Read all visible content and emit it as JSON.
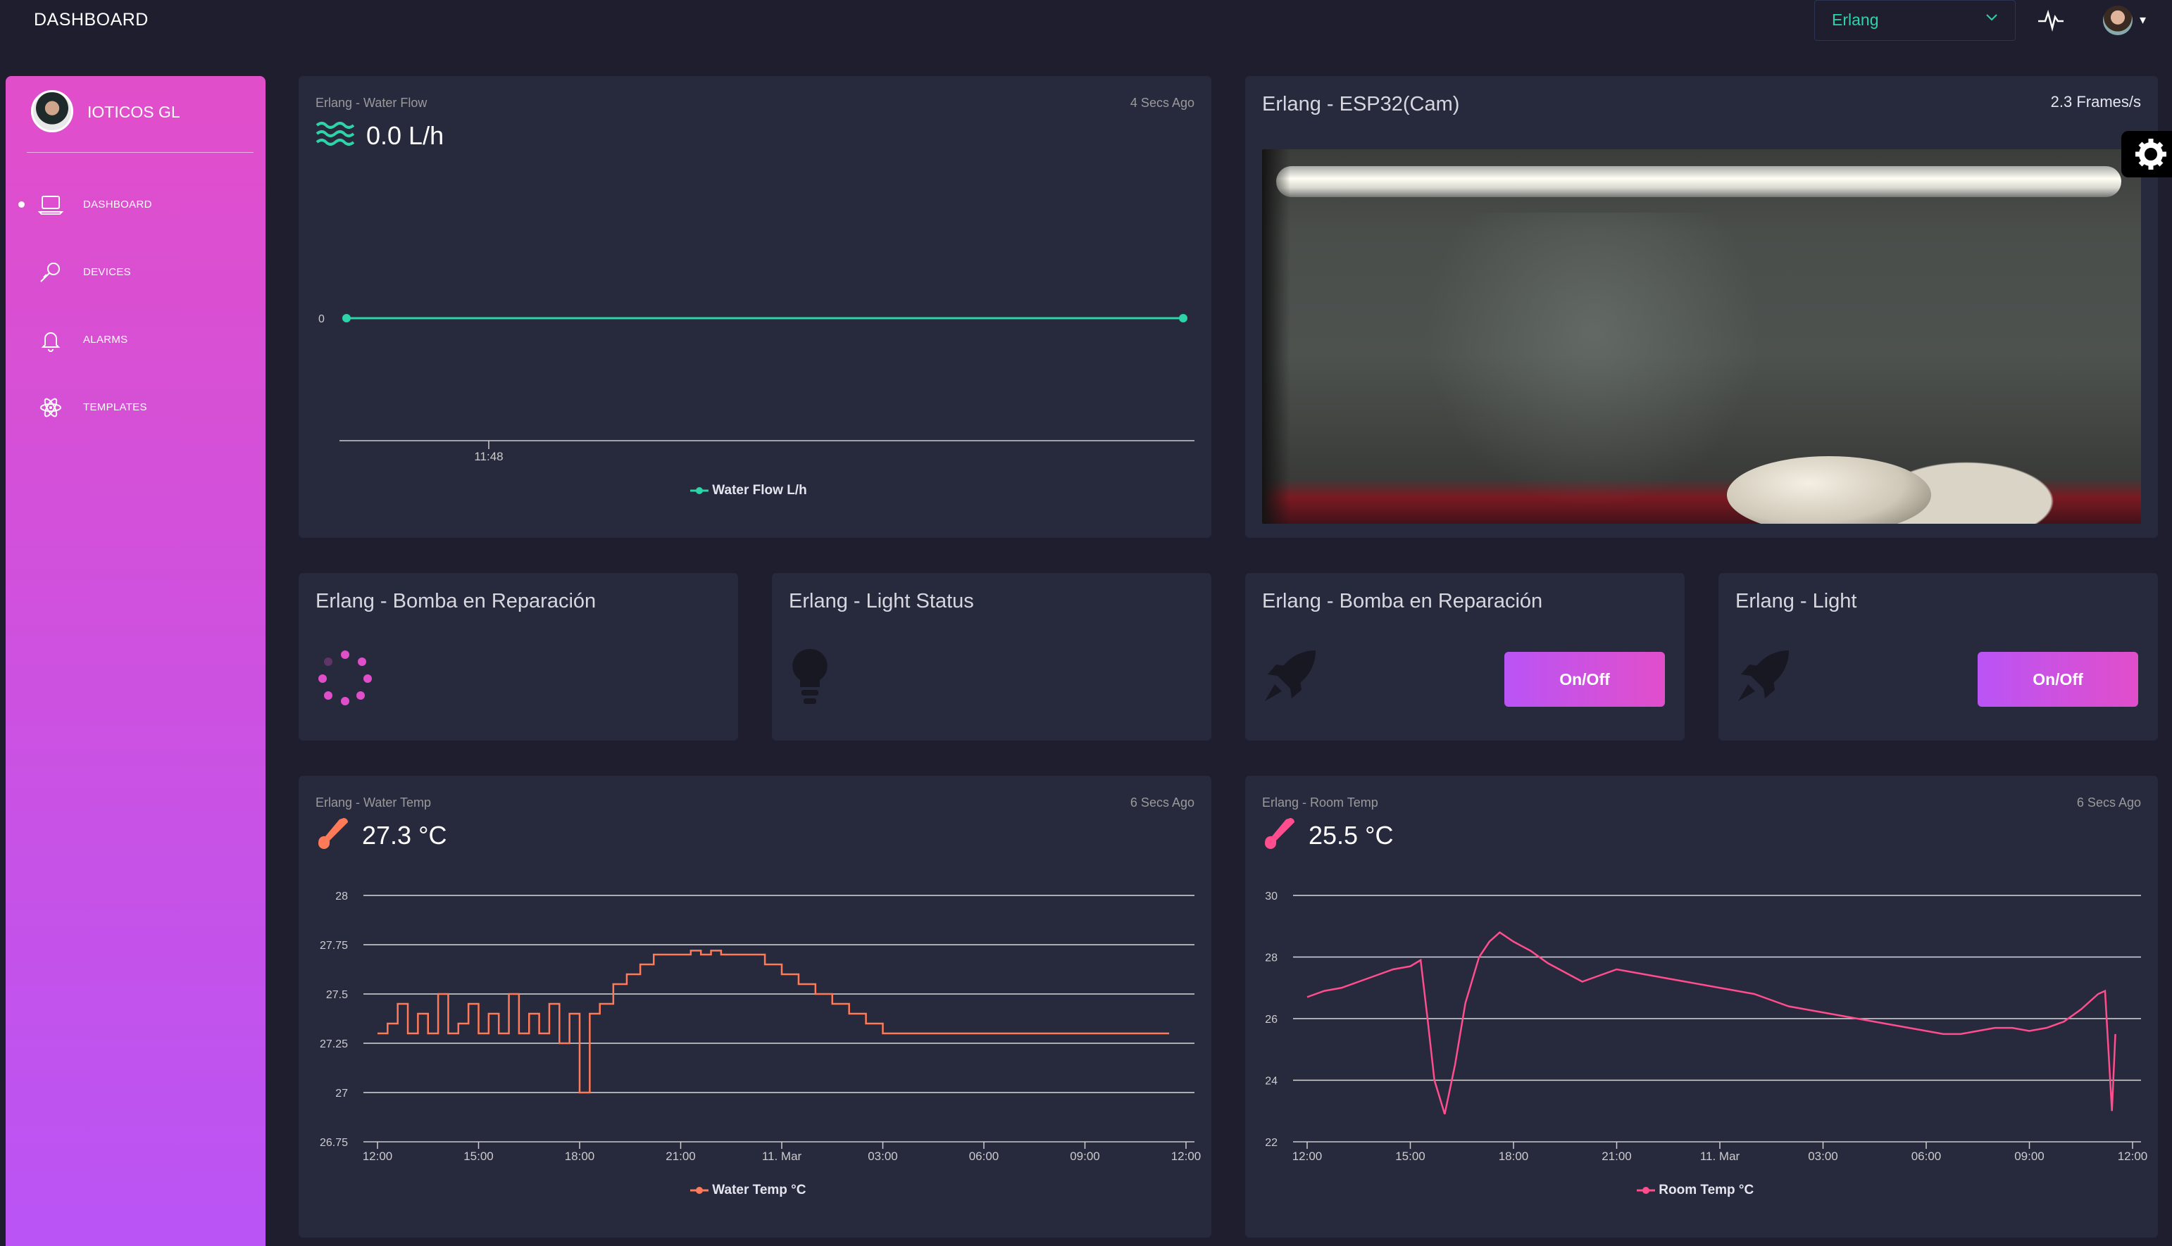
{
  "header": {
    "brand": "DASHBOARD",
    "device_select": "Erlang"
  },
  "sidebar": {
    "user_name": "IOTICOS GL",
    "items": [
      {
        "label": "DASHBOARD",
        "icon": "laptop-icon",
        "active": true
      },
      {
        "label": "DEVICES",
        "icon": "light-bulb-icon",
        "active": false
      },
      {
        "label": "ALARMS",
        "icon": "bell-icon",
        "active": false
      },
      {
        "label": "TEMPLATES",
        "icon": "atom-icon",
        "active": false
      }
    ]
  },
  "colors": {
    "accent_start": "#ba54f5",
    "accent_end": "#e14eca",
    "teal": "#2dd4a8",
    "orange": "#ff7a59",
    "pink": "#ff4d8d",
    "card": "#27293d",
    "bg": "#1e1e2f"
  },
  "water_flow": {
    "subtitle": "Erlang - Water Flow",
    "ago": "4 Secs Ago",
    "value": "0.0 L/h",
    "icon": "water-waves-icon",
    "chart_data": {
      "type": "line",
      "ytick_labels": [
        "0"
      ],
      "xtick_labels": [
        "11:48"
      ],
      "series": [
        {
          "name": "Water Flow L/h",
          "values": [
            0,
            0
          ]
        }
      ],
      "legend": "Water Flow L/h"
    }
  },
  "camera": {
    "title": "Erlang - ESP32(Cam)",
    "fps": "2.3 Frames/s"
  },
  "widgets": [
    {
      "title": "Erlang - Bomba en Reparación",
      "icon": "spinner-icon"
    },
    {
      "title": "Erlang - Light Status",
      "icon": "light-bulb-icon"
    },
    {
      "title": "Erlang - Bomba en Reparación",
      "icon": "rocket-icon",
      "button": "On/Off"
    },
    {
      "title": "Erlang - Light",
      "icon": "rocket-icon",
      "button": "On/Off"
    }
  ],
  "water_temp": {
    "subtitle": "Erlang - Water Temp",
    "ago": "6 Secs Ago",
    "value": "27.3 °C",
    "icon": "thermometer-icon",
    "chart_data": {
      "type": "line",
      "ylim": [
        26.75,
        28
      ],
      "ytick_labels": [
        "28",
        "27.75",
        "27.5",
        "27.25",
        "27",
        "26.75"
      ],
      "xtick_labels": [
        "12:00",
        "15:00",
        "18:00",
        "21:00",
        "11. Mar",
        "03:00",
        "06:00",
        "09:00",
        "12:00"
      ],
      "x": [
        0,
        0.3,
        0.6,
        0.9,
        1.2,
        1.5,
        1.8,
        2.1,
        2.4,
        2.7,
        3.0,
        3.3,
        3.6,
        3.9,
        4.2,
        4.5,
        4.8,
        5.1,
        5.4,
        5.7,
        6.0,
        6.3,
        6.6,
        7.0,
        7.4,
        7.8,
        8.2,
        8.6,
        9.0,
        9.3,
        9.6,
        9.9,
        10.2,
        10.5,
        11.0,
        11.5,
        12.0,
        12.5,
        13.0,
        13.5,
        14.0,
        14.5,
        15.0,
        15.5,
        16.0,
        16.5,
        17.0,
        17.5,
        18.0,
        18.5,
        19.0,
        19.5,
        20.0,
        20.5,
        21.0,
        21.5,
        22.0,
        22.5,
        23.0,
        23.5
      ],
      "series": [
        {
          "name": "Water Temp °C",
          "values": [
            27.3,
            27.35,
            27.45,
            27.3,
            27.4,
            27.3,
            27.5,
            27.3,
            27.35,
            27.45,
            27.3,
            27.4,
            27.3,
            27.5,
            27.3,
            27.4,
            27.3,
            27.45,
            27.25,
            27.4,
            27.0,
            27.4,
            27.45,
            27.55,
            27.6,
            27.65,
            27.7,
            27.7,
            27.7,
            27.72,
            27.7,
            27.72,
            27.7,
            27.7,
            27.7,
            27.65,
            27.6,
            27.55,
            27.5,
            27.45,
            27.4,
            27.35,
            27.3,
            27.3,
            27.3,
            27.3,
            27.3,
            27.3,
            27.3,
            27.3,
            27.3,
            27.3,
            27.3,
            27.3,
            27.3,
            27.3,
            27.3,
            27.3,
            27.3,
            27.3
          ]
        }
      ],
      "legend": "Water Temp °C"
    }
  },
  "room_temp": {
    "subtitle": "Erlang - Room Temp",
    "ago": "6 Secs Ago",
    "value": "25.5 °C",
    "icon": "thermometer-icon",
    "chart_data": {
      "type": "line",
      "ylim": [
        22,
        30
      ],
      "ytick_labels": [
        "30",
        "28",
        "26",
        "24",
        "22"
      ],
      "xtick_labels": [
        "12:00",
        "15:00",
        "18:00",
        "21:00",
        "11. Mar",
        "03:00",
        "06:00",
        "09:00",
        "12:00"
      ],
      "x": [
        0,
        0.5,
        1.0,
        1.5,
        2.0,
        2.5,
        3.0,
        3.3,
        3.5,
        3.7,
        4.0,
        4.3,
        4.6,
        5.0,
        5.3,
        5.6,
        6.0,
        6.5,
        7.0,
        7.5,
        8.0,
        8.5,
        9.0,
        9.5,
        10.0,
        10.5,
        11.0,
        11.5,
        12.0,
        12.5,
        13.0,
        13.5,
        14.0,
        14.5,
        15.0,
        15.5,
        16.0,
        16.5,
        17.0,
        17.5,
        18.0,
        18.5,
        19.0,
        19.5,
        20.0,
        20.5,
        21.0,
        21.5,
        22.0,
        22.5,
        23.0,
        23.2,
        23.4,
        23.5
      ],
      "series": [
        {
          "name": "Room Temp °C",
          "values": [
            26.7,
            26.9,
            27.0,
            27.2,
            27.4,
            27.6,
            27.7,
            27.9,
            26.0,
            24.0,
            22.9,
            24.5,
            26.5,
            28.0,
            28.5,
            28.8,
            28.5,
            28.2,
            27.8,
            27.5,
            27.2,
            27.4,
            27.6,
            27.5,
            27.4,
            27.3,
            27.2,
            27.1,
            27.0,
            26.9,
            26.8,
            26.6,
            26.4,
            26.3,
            26.2,
            26.1,
            26.0,
            25.9,
            25.8,
            25.7,
            25.6,
            25.5,
            25.5,
            25.6,
            25.7,
            25.7,
            25.6,
            25.7,
            25.9,
            26.3,
            26.8,
            26.9,
            23.0,
            25.5
          ]
        }
      ],
      "legend": "Room Temp °C"
    }
  }
}
